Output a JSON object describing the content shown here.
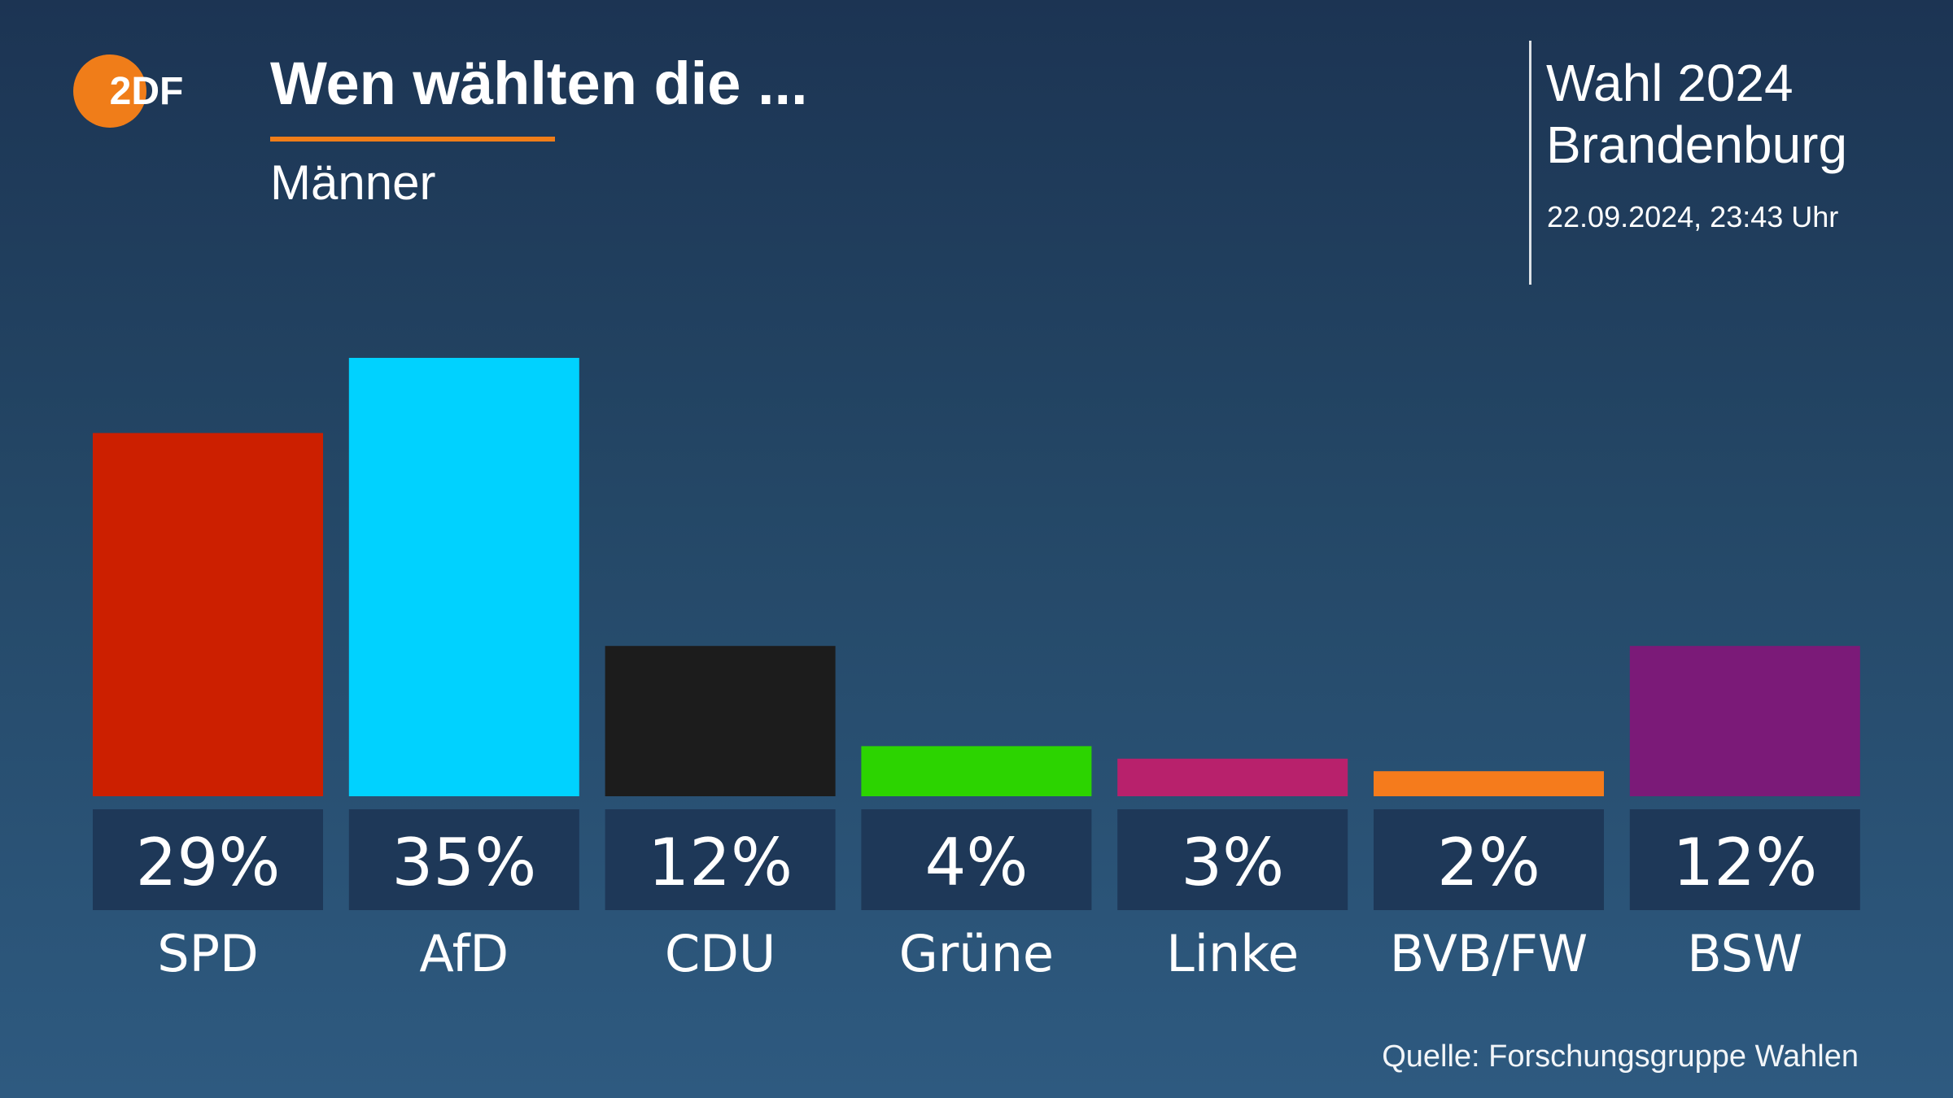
{
  "header": {
    "logo_text": "2DF",
    "title": "Wen wählten die ...",
    "subtitle": "Männer"
  },
  "info": {
    "line1": "Wahl 2024",
    "line2": "Brandenburg",
    "date": "22.09.2024, 23:43 Uhr"
  },
  "source": "Quelle: Forschungsgruppe Wahlen",
  "colors": {
    "accent": "#f07d19",
    "label_box": "#1e3858"
  },
  "chart_data": {
    "type": "bar",
    "categories": [
      "SPD",
      "AfD",
      "CDU",
      "Grüne",
      "Linke",
      "BVB/FW",
      "BSW"
    ],
    "values": [
      29,
      35,
      12,
      4,
      3,
      2,
      12
    ],
    "value_labels": [
      "29%",
      "35%",
      "12%",
      "4%",
      "3%",
      "2%",
      "12%"
    ],
    "colors": [
      "#cc1f00",
      "#00d2ff",
      "#1c1c1c",
      "#2cd400",
      "#b8216c",
      "#f57b1c",
      "#7b1a78"
    ],
    "unit": "%",
    "title": "",
    "xlabel": "",
    "ylabel": "",
    "ylim": [
      0,
      35
    ],
    "grid": false
  }
}
